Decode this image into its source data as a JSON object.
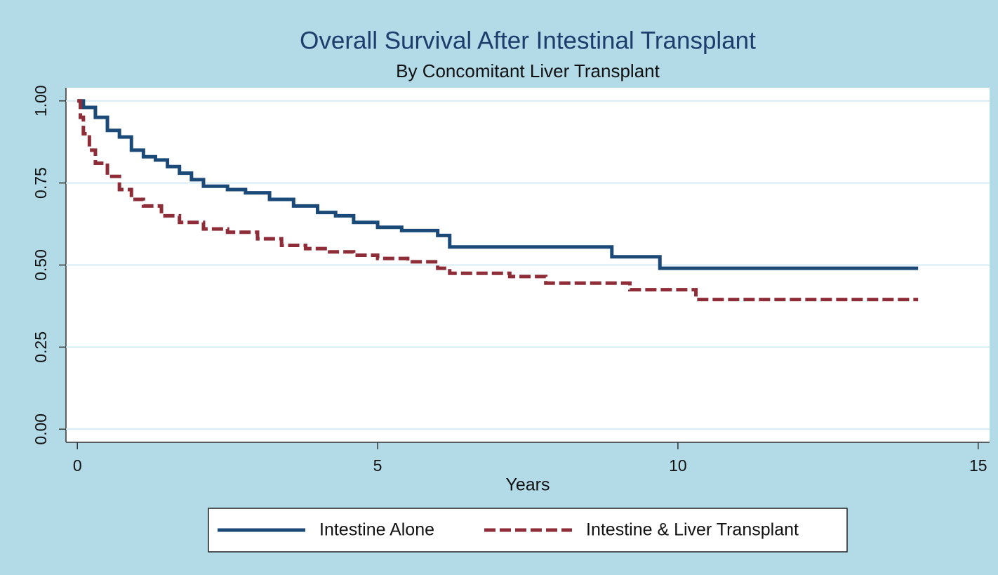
{
  "chart_data": {
    "type": "step",
    "title": "Overall Survival After Intestinal Transplant",
    "subtitle": "By Concomitant Liver Transplant",
    "xlabel": "Years",
    "xlim": [
      -0.19,
      15.19
    ],
    "ylim": [
      -0.04,
      1.04
    ],
    "xticks": [
      0,
      5,
      10,
      15
    ],
    "yticks": [
      {
        "value": 0,
        "label": "0.00"
      },
      {
        "value": 0.25,
        "label": "0.25"
      },
      {
        "value": 0.5,
        "label": "0.50"
      },
      {
        "value": 0.75,
        "label": "0.75"
      },
      {
        "value": 1,
        "label": "1.00"
      }
    ],
    "grid": true,
    "legend": "bottom",
    "series": [
      {
        "name": "Intestine Alone",
        "color": "#1b4a78",
        "line_style": "solid",
        "x": [
          0,
          0.1,
          0.3,
          0.5,
          0.7,
          0.9,
          1.1,
          1.3,
          1.5,
          1.7,
          1.9,
          2.1,
          2.5,
          2.8,
          3.2,
          3.6,
          4.0,
          4.3,
          4.6,
          5.0,
          5.4,
          6.0,
          6.2,
          8.9,
          9.7,
          14.0
        ],
        "values": [
          1.0,
          0.98,
          0.95,
          0.91,
          0.89,
          0.85,
          0.83,
          0.82,
          0.8,
          0.78,
          0.76,
          0.74,
          0.73,
          0.72,
          0.7,
          0.68,
          0.66,
          0.65,
          0.63,
          0.615,
          0.605,
          0.59,
          0.555,
          0.525,
          0.49,
          0.49
        ]
      },
      {
        "name": "Intestine & Liver Transplant",
        "color": "#8e2c38",
        "line_style": "dashed",
        "x": [
          0,
          0.05,
          0.1,
          0.2,
          0.3,
          0.5,
          0.7,
          0.9,
          1.1,
          1.4,
          1.7,
          2.1,
          2.5,
          3.0,
          3.4,
          3.8,
          4.2,
          4.6,
          5.0,
          5.5,
          6.0,
          6.2,
          7.2,
          7.8,
          9.2,
          10.3,
          14.0
        ],
        "values": [
          1.0,
          0.95,
          0.9,
          0.85,
          0.81,
          0.77,
          0.73,
          0.7,
          0.68,
          0.65,
          0.63,
          0.61,
          0.6,
          0.58,
          0.56,
          0.55,
          0.54,
          0.53,
          0.52,
          0.51,
          0.49,
          0.475,
          0.465,
          0.445,
          0.425,
          0.395,
          0.395
        ]
      }
    ]
  }
}
